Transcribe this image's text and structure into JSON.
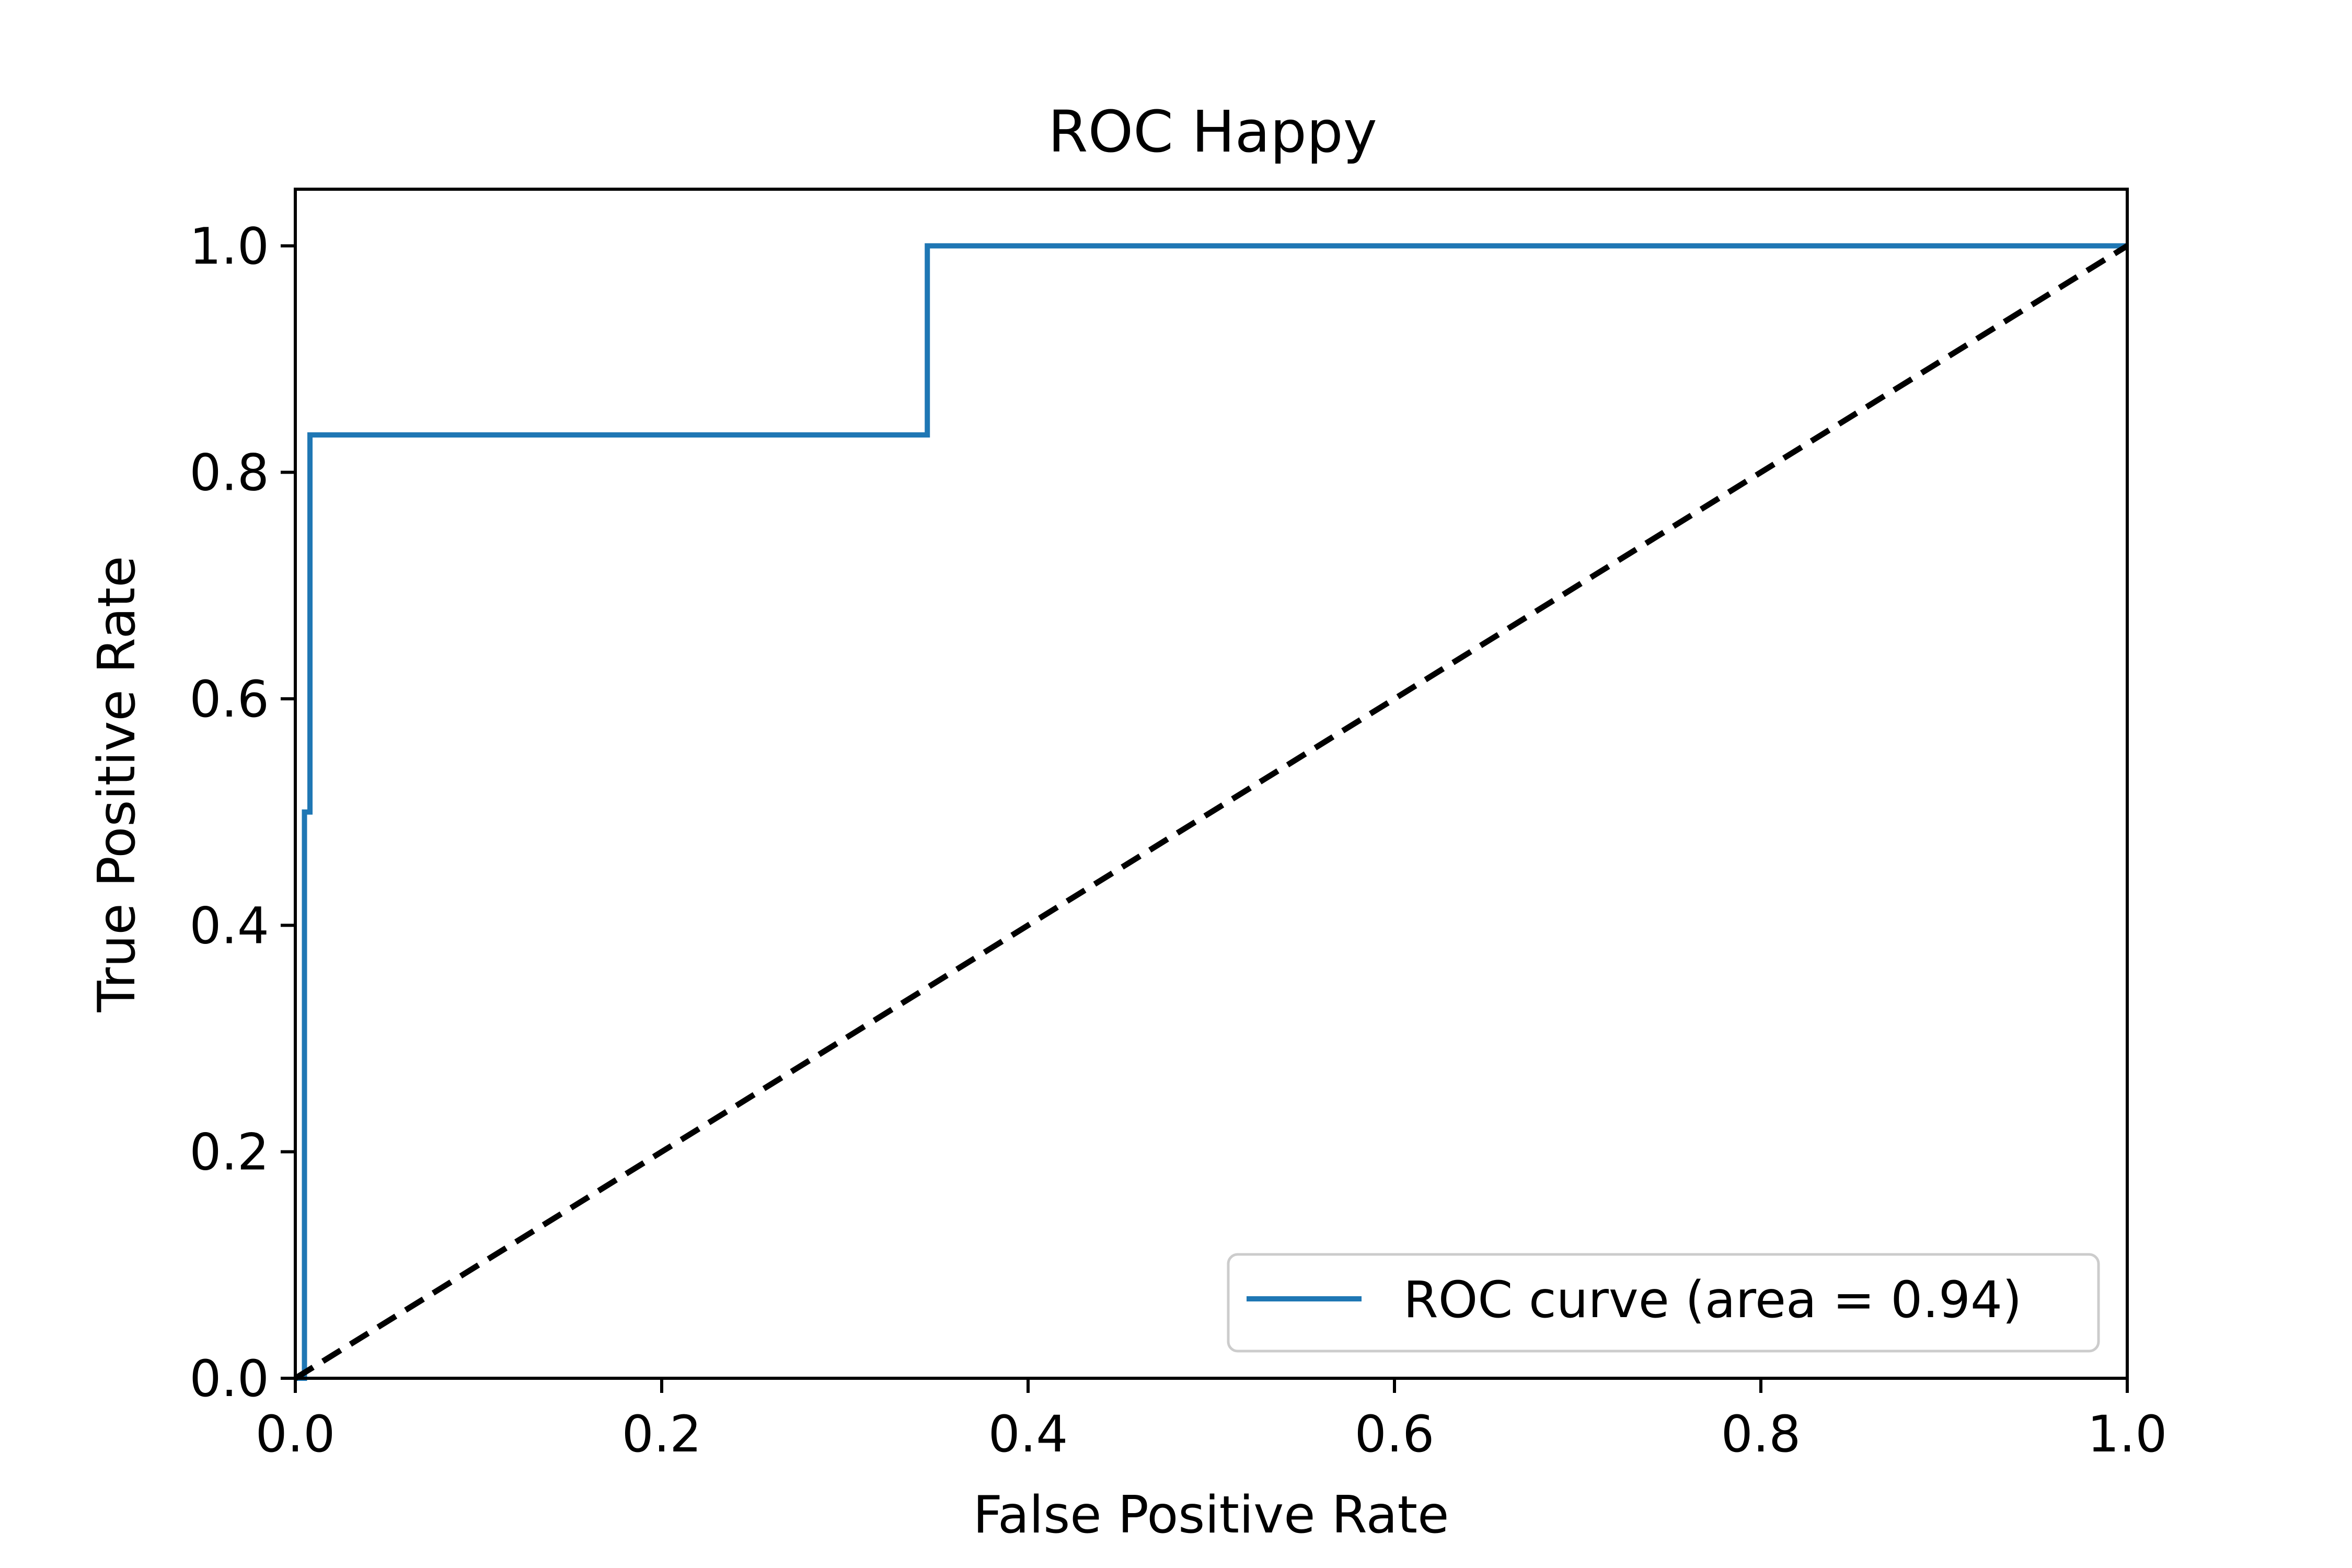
{
  "chart_data": {
    "type": "line",
    "title": "ROC Happy",
    "xlabel": "False Positive Rate",
    "ylabel": "True Positive Rate",
    "xlim": [
      0.0,
      1.0
    ],
    "ylim": [
      0.0,
      1.05
    ],
    "x_ticks": [
      "0.0",
      "0.2",
      "0.4",
      "0.6",
      "0.8",
      "1.0"
    ],
    "y_ticks": [
      "0.0",
      "0.2",
      "0.4",
      "0.6",
      "0.8",
      "1.0"
    ],
    "grid": false,
    "legend_position": "lower-right",
    "series": [
      {
        "name": "ROC curve (area = 0.94)",
        "color": "#1f77b4",
        "style": "solid",
        "x": [
          0.0,
          0.0,
          0.005,
          0.005,
          0.008,
          0.008,
          0.345,
          0.345,
          1.0
        ],
        "y": [
          0.0,
          0.0,
          0.0,
          0.5,
          0.5,
          0.833,
          0.833,
          1.0,
          1.0
        ]
      },
      {
        "color": "#000000",
        "style": "dashed",
        "x": [
          0.0,
          1.0
        ],
        "y": [
          0.0,
          1.0
        ]
      }
    ]
  }
}
